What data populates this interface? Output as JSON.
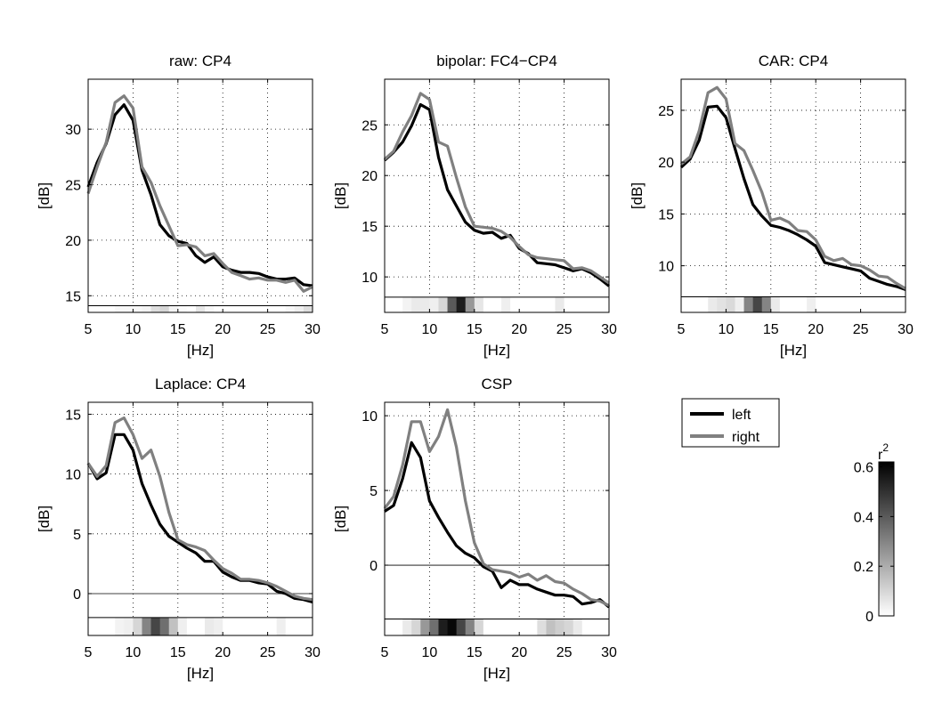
{
  "legend": {
    "entries": [
      {
        "label": "left",
        "color": "#000000"
      },
      {
        "label": "right",
        "color": "#808080"
      }
    ]
  },
  "colorbar": {
    "title": "r",
    "title_sup": "2",
    "range": [
      0,
      0.62
    ],
    "ticks": [
      0,
      0.2,
      0.4,
      0.6
    ],
    "tick_labels": [
      "0",
      "0.2",
      "0.4",
      "0.6"
    ]
  },
  "chart_data": [
    {
      "type": "line",
      "title": "raw: CP4",
      "xlabel": "[Hz]",
      "ylabel": "[dB]",
      "xlim": [
        5,
        30
      ],
      "ylim": [
        13.5,
        34.5
      ],
      "strip_top": 14.1,
      "xticks": [
        5,
        10,
        15,
        20,
        25,
        30
      ],
      "yticks": [
        15,
        20,
        25,
        30
      ],
      "x": [
        5,
        6,
        7,
        8,
        9,
        10,
        11,
        12,
        13,
        14,
        15,
        16,
        17,
        18,
        19,
        20,
        21,
        22,
        23,
        24,
        25,
        26,
        27,
        28,
        29,
        30
      ],
      "series": [
        {
          "name": "left",
          "values": [
            24.8,
            27.0,
            28.7,
            31.3,
            32.2,
            30.8,
            26.3,
            24.1,
            21.4,
            20.4,
            19.9,
            19.7,
            18.6,
            18.0,
            18.5,
            17.6,
            17.3,
            17.1,
            17.1,
            17.0,
            16.7,
            16.5,
            16.5,
            16.6,
            16.0,
            15.9
          ]
        },
        {
          "name": "right",
          "values": [
            24.2,
            26.6,
            28.8,
            32.4,
            33.0,
            31.9,
            26.6,
            25.2,
            23.1,
            21.3,
            19.5,
            19.6,
            19.4,
            18.6,
            18.8,
            17.9,
            17.1,
            16.8,
            16.5,
            16.6,
            16.4,
            16.4,
            16.2,
            16.4,
            15.4,
            15.8
          ]
        }
      ],
      "r2": [
        0,
        0,
        0,
        0.02,
        0.02,
        0.02,
        0.03,
        0.08,
        0.1,
        0.03,
        0.01,
        0,
        0.06,
        0.02,
        0,
        0,
        0,
        0,
        0,
        0,
        0,
        0,
        0.02,
        0.04,
        0.08
      ]
    },
    {
      "type": "line",
      "title": "bipolar: FC4−CP4",
      "xlabel": "[Hz]",
      "ylabel": "[dB]",
      "xlim": [
        5,
        30
      ],
      "ylim": [
        6.5,
        29.5
      ],
      "strip_top": 8.0,
      "xticks": [
        5,
        10,
        15,
        20,
        25,
        30
      ],
      "yticks": [
        10,
        15,
        20,
        25
      ],
      "x": [
        5,
        6,
        7,
        8,
        9,
        10,
        11,
        12,
        13,
        14,
        15,
        16,
        17,
        18,
        19,
        20,
        21,
        22,
        23,
        24,
        25,
        26,
        27,
        28,
        29,
        30
      ],
      "series": [
        {
          "name": "left",
          "values": [
            21.5,
            22.3,
            23.3,
            24.9,
            27.0,
            26.5,
            21.8,
            18.6,
            17.0,
            15.4,
            14.6,
            14.3,
            14.4,
            13.8,
            14.1,
            12.8,
            12.3,
            11.4,
            11.3,
            11.2,
            10.9,
            10.6,
            10.8,
            10.4,
            9.8,
            9.1
          ]
        },
        {
          "name": "right",
          "values": [
            21.6,
            22.4,
            24.3,
            25.9,
            28.1,
            27.5,
            23.3,
            22.9,
            19.8,
            16.9,
            15.0,
            14.9,
            14.8,
            14.5,
            13.9,
            13.0,
            12.2,
            11.9,
            11.8,
            11.7,
            11.6,
            10.8,
            10.9,
            10.6,
            10.0,
            9.4
          ]
        }
      ],
      "r2": [
        0,
        0,
        0.03,
        0.05,
        0.05,
        0.04,
        0.1,
        0.4,
        0.55,
        0.25,
        0.06,
        0,
        0,
        0.04,
        0,
        0,
        0,
        0,
        0,
        0.05,
        0,
        0,
        0,
        0,
        0
      ]
    },
    {
      "type": "line",
      "title": "CAR: CP4",
      "xlabel": "[Hz]",
      "ylabel": "[dB]",
      "xlim": [
        5,
        30
      ],
      "ylim": [
        5.5,
        28.0
      ],
      "strip_top": 7.0,
      "xticks": [
        5,
        10,
        15,
        20,
        25,
        30
      ],
      "yticks": [
        10,
        15,
        20,
        25
      ],
      "x": [
        5,
        6,
        7,
        8,
        9,
        10,
        11,
        12,
        13,
        14,
        15,
        16,
        17,
        18,
        19,
        20,
        21,
        22,
        23,
        24,
        25,
        26,
        27,
        28,
        29,
        30
      ],
      "series": [
        {
          "name": "left",
          "values": [
            19.5,
            20.3,
            22.1,
            25.3,
            25.4,
            24.3,
            21.3,
            18.4,
            15.9,
            14.8,
            13.9,
            13.7,
            13.4,
            13.0,
            12.5,
            11.9,
            10.3,
            10.1,
            9.9,
            9.7,
            9.5,
            8.8,
            8.5,
            8.2,
            8.0,
            7.7
          ]
        },
        {
          "name": "right",
          "values": [
            19.8,
            20.5,
            23.0,
            26.7,
            27.2,
            26.1,
            21.8,
            21.1,
            19.2,
            17.1,
            14.4,
            14.6,
            14.2,
            13.4,
            13.3,
            12.5,
            10.9,
            10.5,
            10.7,
            10.1,
            10.0,
            9.6,
            9.0,
            8.9,
            8.3,
            7.8
          ]
        }
      ],
      "r2": [
        0,
        0,
        0,
        0.05,
        0.07,
        0.09,
        0.04,
        0.3,
        0.45,
        0.3,
        0.05,
        0,
        0,
        0,
        0.04,
        0,
        0,
        0,
        0,
        0,
        0,
        0,
        0,
        0,
        0
      ]
    },
    {
      "type": "line",
      "title": "Laplace: CP4",
      "xlabel": "[Hz]",
      "ylabel": "[dB]",
      "xlim": [
        5,
        30
      ],
      "ylim": [
        -3.5,
        16.0
      ],
      "strip_top": -2.0,
      "xticks": [
        5,
        10,
        15,
        20,
        25,
        30
      ],
      "yticks": [
        0,
        5,
        10,
        15
      ],
      "x": [
        5,
        6,
        7,
        8,
        9,
        10,
        11,
        12,
        13,
        14,
        15,
        16,
        17,
        18,
        19,
        20,
        21,
        22,
        23,
        24,
        25,
        26,
        27,
        28,
        29,
        30
      ],
      "series": [
        {
          "name": "left",
          "values": [
            10.9,
            9.6,
            10.1,
            13.3,
            13.3,
            12.0,
            9.2,
            7.4,
            5.8,
            4.8,
            4.3,
            3.8,
            3.4,
            2.7,
            2.7,
            1.8,
            1.4,
            1.1,
            1.1,
            0.9,
            0.8,
            0.2,
            0.0,
            -0.4,
            -0.5,
            -0.7
          ]
        },
        {
          "name": "right",
          "values": [
            10.9,
            9.8,
            10.7,
            14.3,
            14.7,
            13.3,
            11.3,
            12.0,
            9.8,
            6.8,
            4.5,
            4.1,
            3.9,
            3.6,
            2.8,
            2.1,
            1.7,
            1.2,
            1.2,
            1.1,
            0.9,
            0.6,
            0.2,
            -0.2,
            -0.4,
            -0.5
          ]
        }
      ],
      "r2": [
        0,
        0,
        0,
        0.03,
        0.04,
        0.1,
        0.3,
        0.45,
        0.35,
        0.15,
        0.04,
        0,
        0,
        0.05,
        0.04,
        0,
        0,
        0,
        0,
        0,
        0,
        0.04,
        0,
        0,
        0
      ]
    },
    {
      "type": "line",
      "title": "CSP",
      "xlabel": "[Hz]",
      "ylabel": "[dB]",
      "xlim": [
        5,
        30
      ],
      "ylim": [
        -4.7,
        10.9
      ],
      "strip_top": -3.6,
      "xticks": [
        5,
        10,
        15,
        20,
        25,
        30
      ],
      "yticks": [
        0,
        5,
        10
      ],
      "x": [
        5,
        6,
        7,
        8,
        9,
        10,
        11,
        12,
        13,
        14,
        15,
        16,
        17,
        18,
        19,
        20,
        21,
        22,
        23,
        24,
        25,
        26,
        27,
        28,
        29,
        30
      ],
      "series": [
        {
          "name": "left",
          "values": [
            3.6,
            4.0,
            5.8,
            8.2,
            7.2,
            4.3,
            3.2,
            2.2,
            1.3,
            0.8,
            0.5,
            -0.1,
            -0.4,
            -1.5,
            -1.0,
            -1.3,
            -1.3,
            -1.6,
            -1.8,
            -2.0,
            -2.0,
            -2.1,
            -2.6,
            -2.5,
            -2.3,
            -2.8
          ]
        },
        {
          "name": "right",
          "values": [
            3.8,
            4.6,
            6.7,
            9.6,
            9.6,
            7.6,
            8.6,
            10.4,
            7.9,
            4.3,
            1.5,
            0.1,
            -0.3,
            -0.4,
            -0.5,
            -0.8,
            -0.6,
            -1.0,
            -0.7,
            -1.1,
            -1.2,
            -1.6,
            -1.9,
            -2.3,
            -2.4,
            -2.7
          ]
        }
      ],
      "r2": [
        0,
        0,
        0.05,
        0.1,
        0.25,
        0.35,
        0.55,
        0.6,
        0.45,
        0.3,
        0.1,
        0,
        0,
        0,
        0,
        0,
        0,
        0.08,
        0.15,
        0.12,
        0.1,
        0.05,
        0,
        0,
        0
      ]
    }
  ]
}
